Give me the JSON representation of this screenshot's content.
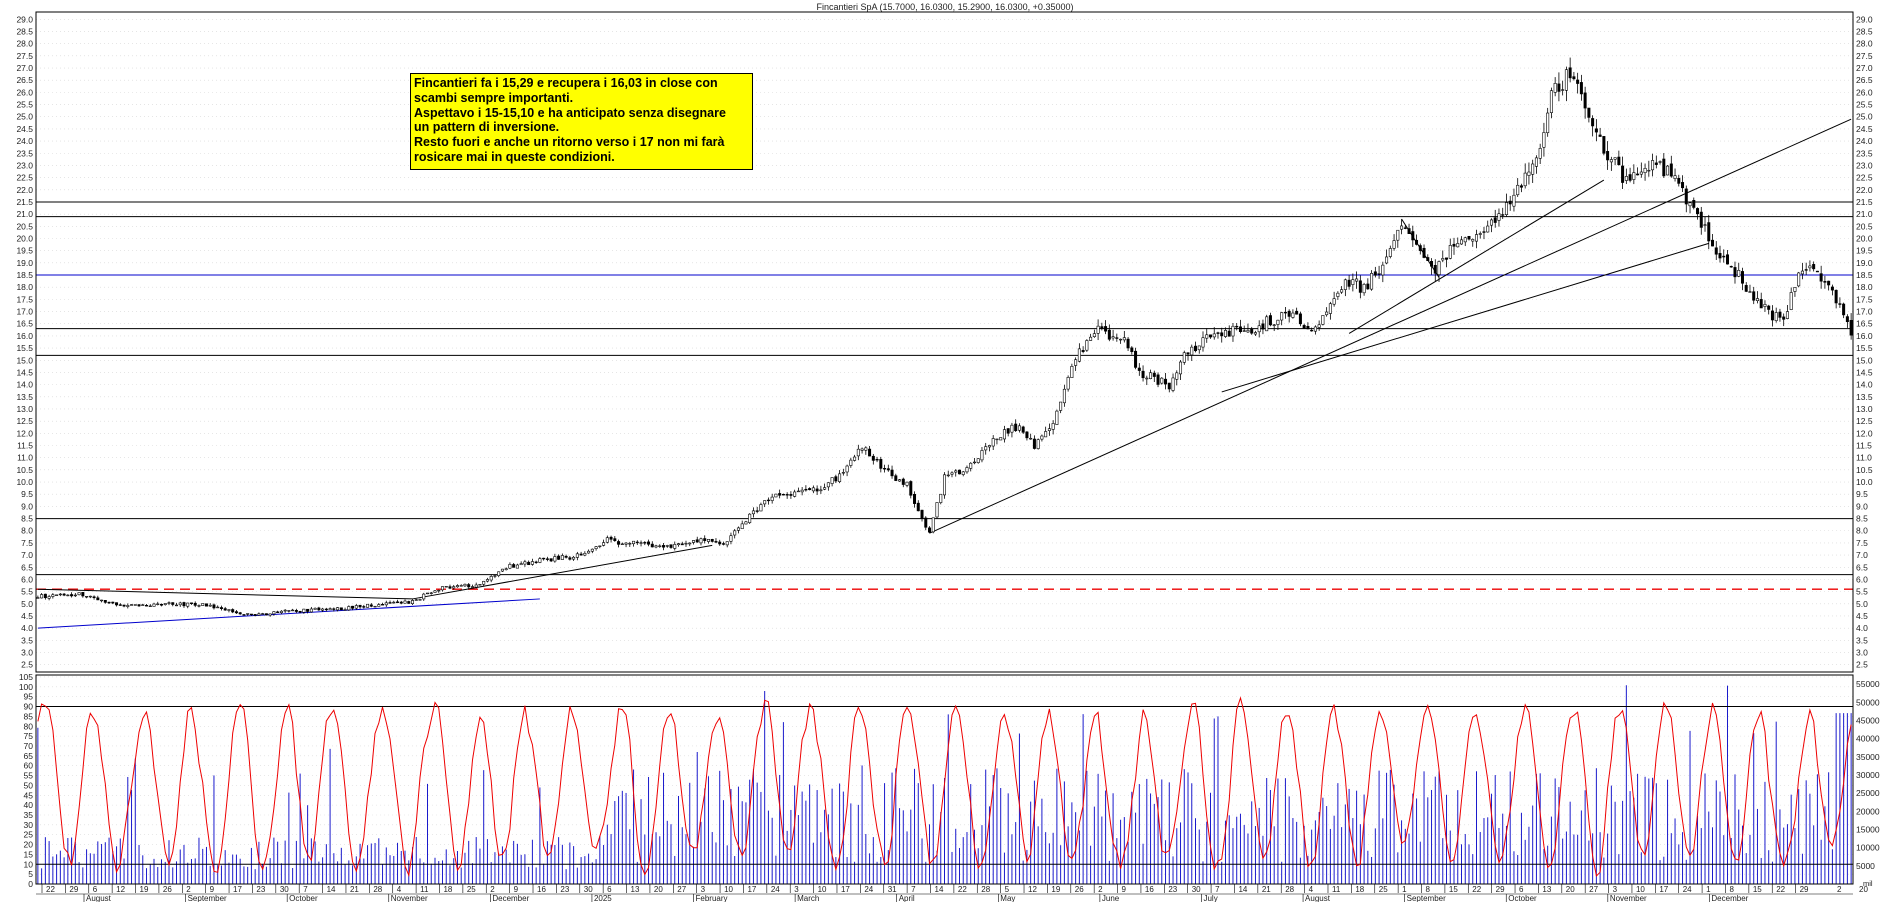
{
  "title": "Fincantieri SpA (15.7000, 16.0300, 15.2900, 16.0300, +0.35000)",
  "annotation": {
    "lines": [
      "Fincantieri fa i 15,29 e recupera i 16,03 in close con",
      "scambi sempre importanti.",
      "Aspettavo i 15-15,10 e ha anticipato senza disegnare",
      "un pattern di inversione.",
      "Resto fuori e anche un ritorno verso i 17 non mi farà",
      "rosicare mai in queste condizioni."
    ]
  },
  "colors": {
    "candle": "#000000",
    "oscillator": "#ee0000",
    "volume": "#1a1acc",
    "support_dashed": "#ee0000",
    "support_blue": "#0000cc",
    "annotation_bg": "#ffff00"
  },
  "chart_data": [
    {
      "type": "candlestick",
      "y_ticks": [
        "2.5",
        "3.0",
        "3.5",
        "4.0",
        "4.5",
        "5.0",
        "5.5",
        "6.0",
        "6.5",
        "7.0",
        "7.5",
        "8.0",
        "8.5",
        "9.0",
        "9.5",
        "10.0",
        "10.5",
        "11.0",
        "11.5",
        "12.0",
        "12.5",
        "13.0",
        "13.5",
        "14.0",
        "14.5",
        "15.0",
        "15.5",
        "16.0",
        "16.5",
        "17.0",
        "17.5",
        "18.0",
        "18.5",
        "19.0",
        "19.5",
        "20.0",
        "20.5",
        "21.0",
        "21.5",
        "22.0",
        "22.5",
        "23.0",
        "23.5",
        "24.0",
        "24.5",
        "25.0",
        "25.5",
        "26.0",
        "26.5",
        "27.0",
        "27.5",
        "28.0",
        "28.5",
        "29.0"
      ],
      "ylim": [
        2.2,
        29.3
      ],
      "grid": true,
      "price_path": [
        [
          0,
          5.3
        ],
        [
          12,
          5.4
        ],
        [
          22,
          4.95
        ],
        [
          44,
          5.0
        ],
        [
          56,
          4.55
        ],
        [
          68,
          4.7
        ],
        [
          84,
          4.85
        ],
        [
          100,
          5.1
        ],
        [
          108,
          5.7
        ],
        [
          118,
          5.75
        ],
        [
          124,
          6.5
        ],
        [
          135,
          6.8
        ],
        [
          146,
          7.0
        ],
        [
          152,
          7.6
        ],
        [
          160,
          7.45
        ],
        [
          170,
          7.4
        ],
        [
          178,
          7.7
        ],
        [
          184,
          7.5
        ],
        [
          188,
          8.3
        ],
        [
          196,
          9.4
        ],
        [
          206,
          9.6
        ],
        [
          214,
          10.2
        ],
        [
          220,
          11.4
        ],
        [
          226,
          10.5
        ],
        [
          232,
          9.9
        ],
        [
          236,
          8.6
        ],
        [
          238,
          7.9
        ],
        [
          242,
          10.2
        ],
        [
          248,
          10.6
        ],
        [
          256,
          11.9
        ],
        [
          262,
          12.3
        ],
        [
          266,
          11.5
        ],
        [
          272,
          12.8
        ],
        [
          276,
          14.8
        ],
        [
          282,
          16.3
        ],
        [
          290,
          15.9
        ],
        [
          294,
          14.5
        ],
        [
          302,
          14.0
        ],
        [
          306,
          15.2
        ],
        [
          314,
          16.1
        ],
        [
          326,
          16.4
        ],
        [
          334,
          17.0
        ],
        [
          340,
          16.1
        ],
        [
          346,
          17.6
        ],
        [
          350,
          18.3
        ],
        [
          354,
          17.9
        ],
        [
          358,
          18.7
        ],
        [
          364,
          20.7
        ],
        [
          372,
          18.7
        ],
        [
          378,
          19.6
        ],
        [
          386,
          20.3
        ],
        [
          392,
          21.3
        ],
        [
          398,
          22.6
        ],
        [
          402,
          24.1
        ],
        [
          404,
          25.8
        ],
        [
          408,
          26.6
        ],
        [
          412,
          25.8
        ],
        [
          418,
          23.6
        ],
        [
          424,
          22.4
        ],
        [
          430,
          23.0
        ],
        [
          436,
          22.7
        ],
        [
          440,
          21.6
        ],
        [
          446,
          20.0
        ],
        [
          452,
          18.9
        ],
        [
          458,
          17.6
        ],
        [
          462,
          17.0
        ],
        [
          466,
          16.6
        ],
        [
          470,
          18.5
        ],
        [
          474,
          18.7
        ],
        [
          478,
          18.2
        ],
        [
          482,
          16.7
        ],
        [
          484,
          16.03
        ]
      ],
      "horizontal_levels": [
        {
          "value": 15.2,
          "style": "solid",
          "color": "#000000"
        },
        {
          "value": 18.5,
          "style": "solid",
          "color": "#0000cc"
        },
        {
          "value": 20.9,
          "style": "solid",
          "color": "#000000"
        },
        {
          "value": 21.5,
          "style": "solid",
          "color": "#000000"
        },
        {
          "value": 16.3,
          "style": "solid",
          "color": "#000000"
        },
        {
          "value": 8.5,
          "style": "solid",
          "color": "#000000"
        },
        {
          "value": 6.2,
          "style": "solid",
          "color": "#000000"
        },
        {
          "value": 5.6,
          "style": "dashed",
          "color": "#ee0000"
        }
      ],
      "trendlines": [
        {
          "x": [
            0,
            134
          ],
          "y": [
            4.0,
            5.2
          ],
          "color": "#0000cc"
        },
        {
          "x": [
            0,
            100
          ],
          "y": [
            5.6,
            5.2
          ],
          "color": "#000000"
        },
        {
          "x": [
            100,
            180
          ],
          "y": [
            5.2,
            7.4
          ],
          "color": "#000000"
        },
        {
          "x": [
            238,
            484
          ],
          "y": [
            7.9,
            24.9
          ],
          "color": "#000000"
        },
        {
          "x": [
            316,
            446
          ],
          "y": [
            13.7,
            19.8
          ],
          "color": "#000000"
        },
        {
          "x": [
            350,
            418
          ],
          "y": [
            16.1,
            22.4
          ],
          "color": "#000000"
        },
        {
          "x": [
            364,
            374
          ],
          "y": [
            20.8,
            18.4
          ],
          "color": "#000000"
        }
      ]
    },
    {
      "type": "line+bar",
      "y_ticks_left": [
        "0",
        "5",
        "10",
        "15",
        "20",
        "25",
        "30",
        "35",
        "40",
        "45",
        "50",
        "55",
        "60",
        "65",
        "70",
        "75",
        "80",
        "85",
        "90",
        "95",
        "100",
        "105"
      ],
      "ylim_left": [
        0,
        106
      ],
      "y_ticks_right": [
        "5000",
        "10000",
        "15000",
        "20000",
        "25000",
        "30000",
        "35000",
        "40000",
        "45000",
        "50000",
        "55000"
      ],
      "ylim_right": [
        0,
        57500
      ],
      "levels": [
        90,
        10
      ],
      "x_ticks": [
        "22",
        "29",
        "6",
        "12",
        "19",
        "26",
        "2",
        "9",
        "17",
        "23",
        "30",
        "7",
        "14",
        "21",
        "28",
        "4",
        "11",
        "18",
        "25",
        "2",
        "9",
        "16",
        "23",
        "30",
        "6",
        "13",
        "20",
        "27",
        "3",
        "10",
        "17",
        "24",
        "3",
        "10",
        "17",
        "24",
        "31",
        "7",
        "14",
        "22",
        "28",
        "5",
        "12",
        "19",
        "26",
        "2",
        "9",
        "16",
        "23",
        "30",
        "7",
        "14",
        "21",
        "28",
        "4",
        "11",
        "18",
        "25",
        "1",
        "8",
        "15",
        "22",
        "29",
        "6",
        "13",
        "20",
        "27",
        "3",
        "10",
        "17",
        "24",
        "1",
        "8",
        "15",
        "22",
        "29"
      ],
      "months": [
        "August",
        "September",
        "October",
        "November",
        "December",
        "2025",
        "February",
        "March",
        "April",
        "May",
        "June",
        "July",
        "August",
        "September",
        "October",
        "November",
        "December"
      ],
      "date_end_labels": [
        "2",
        "20"
      ],
      "legend_tag": "mil"
    }
  ]
}
